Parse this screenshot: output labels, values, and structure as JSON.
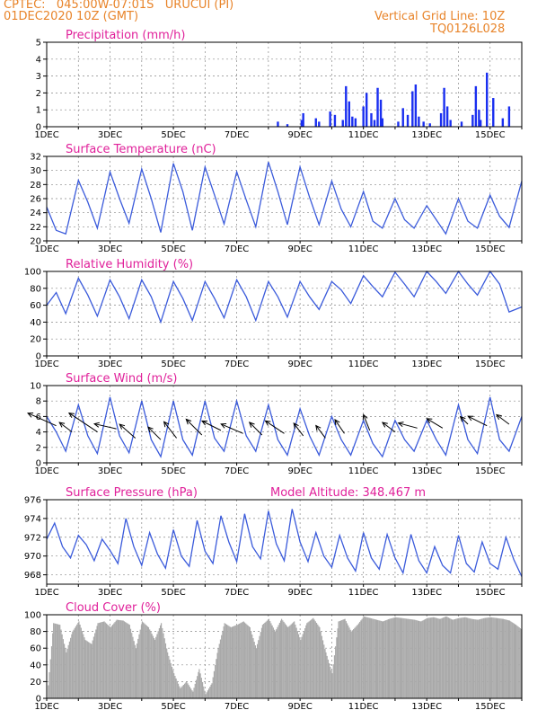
{
  "header": {
    "line1": "CPTEC:   045:00W-07:01S   URUCUI (PI)",
    "line2": "01DEC2020 10Z (GMT)",
    "right1": "Vertical Grid Line: 10Z",
    "right2": "TQ0126L028"
  },
  "colors": {
    "header": "#e8842a",
    "title": "#e0209a",
    "line": "#3b5bdb",
    "bar": "#1a2ff0",
    "cloud": "#a9a9a9",
    "arrow": "#000000"
  },
  "x_ticks": [
    "1DEC",
    "3DEC",
    "5DEC",
    "7DEC",
    "9DEC",
    "11DEC",
    "13DEC",
    "15DEC"
  ],
  "chart_data": [
    {
      "id": "precip",
      "type": "bar",
      "title": "Precipitation (mm/h)",
      "ylim": [
        0,
        5
      ],
      "yticks": [
        "0",
        "1",
        "2",
        "3",
        "4",
        "5"
      ],
      "x": [
        8.3,
        8.6,
        9.05,
        9.1,
        9.5,
        9.6,
        9.95,
        10.1,
        10.35,
        10.45,
        10.55,
        10.65,
        10.75,
        11.0,
        11.1,
        11.25,
        11.35,
        11.45,
        11.55,
        11.6,
        12.1,
        12.25,
        12.4,
        12.55,
        12.65,
        12.75,
        12.9,
        13.1,
        13.45,
        13.55,
        13.65,
        13.75,
        14.1,
        14.45,
        14.55,
        14.65,
        14.7,
        14.9,
        15.1,
        15.4,
        15.6
      ],
      "values": [
        0.3,
        0.15,
        0.4,
        0.8,
        0.5,
        0.3,
        0.9,
        0.7,
        0.4,
        2.4,
        1.5,
        0.6,
        0.5,
        1.2,
        2.0,
        0.8,
        0.4,
        2.3,
        1.6,
        0.5,
        0.3,
        1.1,
        0.7,
        2.1,
        2.5,
        0.6,
        0.3,
        0.2,
        0.8,
        2.3,
        1.2,
        0.4,
        0.3,
        0.7,
        2.4,
        1.0,
        0.4,
        3.2,
        1.7,
        0.5,
        1.2
      ]
    },
    {
      "id": "temp",
      "type": "line",
      "title": "Surface Temperature (nC)",
      "ylim": [
        20,
        32
      ],
      "yticks": [
        "20",
        "22",
        "24",
        "26",
        "28",
        "30",
        "32"
      ],
      "x": [
        1.0,
        1.3,
        1.6,
        2.0,
        2.3,
        2.6,
        3.0,
        3.3,
        3.6,
        4.0,
        4.3,
        4.6,
        5.0,
        5.3,
        5.6,
        6.0,
        6.3,
        6.6,
        7.0,
        7.3,
        7.6,
        8.0,
        8.3,
        8.6,
        9.0,
        9.3,
        9.6,
        10.0,
        10.3,
        10.6,
        11.0,
        11.3,
        11.6,
        12.0,
        12.3,
        12.6,
        13.0,
        13.3,
        13.6,
        14.0,
        14.3,
        14.6,
        15.0,
        15.3,
        15.6,
        16.0
      ],
      "y": [
        24.8,
        21.5,
        21.0,
        28.6,
        25.5,
        21.8,
        29.8,
        26.0,
        22.5,
        30.2,
        26.0,
        21.2,
        31.0,
        27.0,
        21.5,
        30.5,
        26.5,
        22.4,
        29.8,
        25.8,
        22.0,
        31.2,
        27.0,
        22.3,
        30.5,
        26.2,
        22.3,
        28.5,
        24.5,
        22.0,
        27.0,
        22.8,
        21.8,
        26.0,
        23.0,
        21.8,
        25.0,
        23.0,
        21.0,
        26.0,
        22.8,
        21.8,
        26.5,
        23.5,
        21.9,
        28.5
      ],
      "xlabel": "",
      "ylabel": ""
    },
    {
      "id": "rh",
      "type": "line",
      "title": "Relative Humidity (%)",
      "ylim": [
        0,
        100
      ],
      "yticks": [
        "0",
        "20",
        "40",
        "60",
        "80",
        "100"
      ],
      "x": [
        1.0,
        1.3,
        1.6,
        2.0,
        2.3,
        2.6,
        3.0,
        3.3,
        3.6,
        4.0,
        4.3,
        4.6,
        5.0,
        5.3,
        5.6,
        6.0,
        6.3,
        6.6,
        7.0,
        7.3,
        7.6,
        8.0,
        8.3,
        8.6,
        9.0,
        9.3,
        9.6,
        10.0,
        10.3,
        10.6,
        11.0,
        11.3,
        11.6,
        12.0,
        12.3,
        12.6,
        13.0,
        13.3,
        13.6,
        14.0,
        14.3,
        14.6,
        15.0,
        15.3,
        15.6,
        16.0
      ],
      "y": [
        60,
        75,
        50,
        92,
        72,
        47,
        90,
        70,
        44,
        90,
        70,
        40,
        88,
        68,
        42,
        88,
        68,
        45,
        90,
        70,
        42,
        88,
        70,
        46,
        88,
        70,
        55,
        88,
        78,
        62,
        95,
        82,
        70,
        99,
        85,
        70,
        100,
        88,
        74,
        100,
        85,
        72,
        100,
        85,
        52,
        58
      ],
      "xlabel": "",
      "ylabel": ""
    },
    {
      "id": "wind",
      "type": "line",
      "title": "Surface Wind (m/s)",
      "ylim": [
        0,
        10
      ],
      "yticks": [
        "0",
        "2",
        "4",
        "6",
        "8",
        "10"
      ],
      "x": [
        1.0,
        1.3,
        1.6,
        2.0,
        2.3,
        2.6,
        3.0,
        3.3,
        3.6,
        4.0,
        4.3,
        4.6,
        5.0,
        5.3,
        5.6,
        6.0,
        6.3,
        6.6,
        7.0,
        7.3,
        7.6,
        8.0,
        8.3,
        8.6,
        9.0,
        9.3,
        9.6,
        10.0,
        10.3,
        10.6,
        11.0,
        11.3,
        11.6,
        12.0,
        12.3,
        12.6,
        13.0,
        13.3,
        13.6,
        14.0,
        14.3,
        14.6,
        15.0,
        15.3,
        15.6,
        16.0
      ],
      "y": [
        6.0,
        4.0,
        1.5,
        7.5,
        3.5,
        1.2,
        8.5,
        3.5,
        1.3,
        8.0,
        3.0,
        0.8,
        8.0,
        3.0,
        1.0,
        8.0,
        3.2,
        1.5,
        8.0,
        3.5,
        1.5,
        7.5,
        3.0,
        1.0,
        7.0,
        3.5,
        1.0,
        6.0,
        3.0,
        1.0,
        5.5,
        2.5,
        0.8,
        5.5,
        3.0,
        1.5,
        5.5,
        3.0,
        1.0,
        7.5,
        3.0,
        1.2,
        8.5,
        3.0,
        1.5,
        6.0
      ],
      "arrows": [
        [
          1.3,
          4.8,
          -4.5,
          2.0
        ],
        [
          1.8,
          4.0,
          -2.0,
          1.5
        ],
        [
          2.6,
          4.0,
          -4.5,
          3.0
        ],
        [
          3.2,
          4.4,
          -3.5,
          0.8
        ],
        [
          3.8,
          3.2,
          -2.5,
          2.2
        ],
        [
          4.6,
          3.0,
          -2.0,
          2.0
        ],
        [
          5.1,
          3.2,
          -2.0,
          2.6
        ],
        [
          5.9,
          3.6,
          -2.5,
          2.5
        ],
        [
          6.5,
          4.2,
          -3.0,
          1.5
        ],
        [
          7.2,
          3.8,
          -3.5,
          1.5
        ],
        [
          7.8,
          3.6,
          -2.0,
          2.0
        ],
        [
          8.5,
          3.8,
          -3.0,
          2.0
        ],
        [
          9.1,
          3.5,
          -1.5,
          2.0
        ],
        [
          9.8,
          3.2,
          -1.5,
          2.0
        ],
        [
          10.4,
          3.8,
          -1.5,
          2.2
        ],
        [
          11.2,
          4.2,
          -1.0,
          2.5
        ],
        [
          12.0,
          4.0,
          -2.0,
          1.5
        ],
        [
          12.7,
          4.5,
          -3.0,
          0.8
        ],
        [
          13.5,
          4.5,
          -2.5,
          1.5
        ],
        [
          14.3,
          5.0,
          -1.2,
          1.2
        ],
        [
          14.9,
          4.8,
          -3.0,
          1.5
        ],
        [
          15.6,
          5.0,
          -2.0,
          1.5
        ]
      ],
      "xlabel": "",
      "ylabel": ""
    },
    {
      "id": "pres",
      "type": "line",
      "title": "Surface Pressure (hPa)",
      "ylim": [
        967,
        976
      ],
      "yticks": [
        "968",
        "970",
        "972",
        "974",
        "976"
      ],
      "x": [
        1.0,
        1.25,
        1.5,
        1.75,
        2.0,
        2.25,
        2.5,
        2.75,
        3.0,
        3.25,
        3.5,
        3.75,
        4.0,
        4.25,
        4.5,
        4.75,
        5.0,
        5.25,
        5.5,
        5.75,
        6.0,
        6.25,
        6.5,
        6.75,
        7.0,
        7.25,
        7.5,
        7.75,
        8.0,
        8.25,
        8.5,
        8.75,
        9.0,
        9.25,
        9.5,
        9.75,
        10.0,
        10.25,
        10.5,
        10.75,
        11.0,
        11.25,
        11.5,
        11.75,
        12.0,
        12.25,
        12.5,
        12.75,
        13.0,
        13.25,
        13.5,
        13.75,
        14.0,
        14.25,
        14.5,
        14.75,
        15.0,
        15.25,
        15.5,
        15.75,
        16.0
      ],
      "y": [
        971.8,
        973.5,
        971.0,
        969.8,
        972.2,
        971.2,
        969.5,
        971.8,
        970.6,
        969.2,
        974.0,
        971.0,
        969.0,
        972.5,
        970.2,
        968.7,
        972.8,
        970.0,
        968.9,
        973.8,
        970.5,
        969.2,
        974.3,
        971.5,
        969.4,
        974.5,
        971.0,
        969.7,
        974.8,
        971.3,
        969.5,
        975.0,
        971.5,
        969.4,
        972.5,
        970.0,
        968.8,
        972.2,
        969.8,
        968.4,
        972.5,
        969.8,
        968.6,
        972.3,
        969.8,
        968.2,
        972.3,
        969.5,
        968.2,
        971.0,
        969.0,
        968.2,
        972.2,
        969.2,
        968.3,
        971.5,
        969.2,
        968.6,
        972.0,
        969.6,
        967.8
      ],
      "labels": {
        "altitude": "Model Altitude: 348.467 m"
      },
      "xlabel": "",
      "ylabel": ""
    },
    {
      "id": "cloud",
      "type": "area",
      "title": "Cloud Cover (%)",
      "ylim": [
        0,
        100
      ],
      "yticks": [
        "0",
        "20",
        "40",
        "60",
        "80",
        "100"
      ],
      "x": [
        1.0,
        1.2,
        1.4,
        1.6,
        1.8,
        2.0,
        2.2,
        2.4,
        2.6,
        2.8,
        3.0,
        3.2,
        3.4,
        3.6,
        3.8,
        4.0,
        4.2,
        4.4,
        4.6,
        4.8,
        5.0,
        5.2,
        5.4,
        5.6,
        5.8,
        6.0,
        6.2,
        6.4,
        6.6,
        6.8,
        7.0,
        7.2,
        7.4,
        7.6,
        7.8,
        8.0,
        8.2,
        8.4,
        8.6,
        8.8,
        9.0,
        9.2,
        9.4,
        9.6,
        9.8,
        10.0,
        10.2,
        10.4,
        10.6,
        10.8,
        11.0,
        11.2,
        11.4,
        11.6,
        11.8,
        12.0,
        12.2,
        12.4,
        12.6,
        12.8,
        13.0,
        13.2,
        13.4,
        13.6,
        13.8,
        14.0,
        14.2,
        14.4,
        14.6,
        14.8,
        15.0,
        15.2,
        15.4,
        15.6,
        15.8,
        16.0
      ],
      "y": [
        0,
        90,
        88,
        55,
        80,
        92,
        70,
        65,
        90,
        92,
        85,
        94,
        93,
        88,
        60,
        92,
        85,
        70,
        90,
        55,
        30,
        12,
        20,
        8,
        35,
        5,
        18,
        60,
        90,
        85,
        88,
        92,
        85,
        60,
        88,
        95,
        80,
        95,
        85,
        92,
        70,
        90,
        96,
        85,
        55,
        30,
        92,
        95,
        80,
        88,
        98,
        96,
        94,
        92,
        95,
        97,
        96,
        95,
        94,
        92,
        96,
        97,
        95,
        98,
        94,
        96,
        97,
        95,
        94,
        96,
        97,
        96,
        95,
        93,
        88,
        82
      ]
    }
  ]
}
